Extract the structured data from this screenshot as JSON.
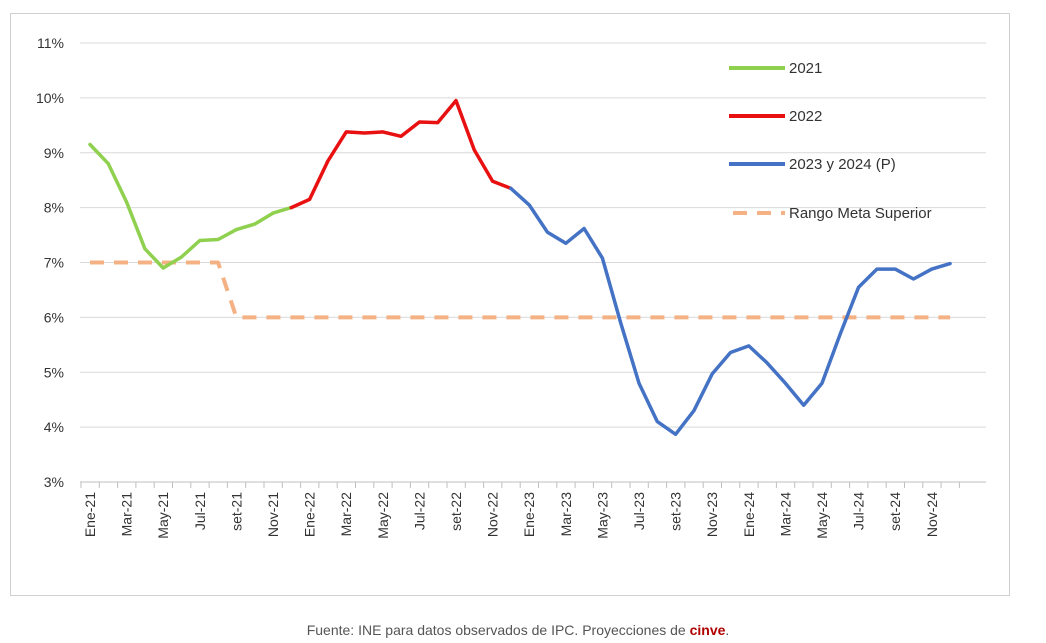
{
  "chart_data": {
    "type": "line",
    "title": "",
    "xlabel": "",
    "ylabel": "",
    "y_axis": {
      "ticks": [
        "3%",
        "4%",
        "5%",
        "6%",
        "7%",
        "8%",
        "9%",
        "10%",
        "11%"
      ],
      "ylim": [
        3,
        11
      ]
    },
    "x_tick_labels": [
      "Ene-21",
      "Mar-21",
      "May-21",
      "Jul-21",
      "set-21",
      "Nov-21",
      "Ene-22",
      "Mar-22",
      "May-22",
      "Jul-22",
      "set-22",
      "Nov-22",
      "Ene-23",
      "Mar-23",
      "May-23",
      "Jul-23",
      "set-23",
      "Nov-23",
      "Ene-24",
      "Mar-24",
      "May-24",
      "Jul-24",
      "set-24",
      "Nov-24"
    ],
    "grid": "horizontal",
    "legend_position": "top-right",
    "series": [
      {
        "name": "2021",
        "color": "#8fd14f",
        "style": "solid",
        "start_month": "Ene-21",
        "values": [
          9.15,
          8.8,
          8.1,
          7.25,
          6.9,
          7.1,
          7.4,
          7.42,
          7.6,
          7.7,
          7.9,
          8.0
        ]
      },
      {
        "name": "2022",
        "color": "#e81010",
        "style": "solid",
        "start_month": "Dic-21",
        "values": [
          8.0,
          8.15,
          8.85,
          9.38,
          9.36,
          9.38,
          9.3,
          9.56,
          9.55,
          9.95,
          9.05,
          8.48,
          8.35
        ]
      },
      {
        "name": "2023 y 2024 (P)",
        "color": "#4472c4",
        "style": "solid",
        "start_month": "Dic-22",
        "values": [
          8.35,
          8.05,
          7.55,
          7.35,
          7.62,
          7.08,
          5.9,
          4.8,
          4.1,
          3.87,
          4.3,
          4.97,
          5.36,
          5.48,
          5.17,
          4.8,
          4.4,
          4.8,
          5.7,
          6.55,
          6.88,
          6.88,
          6.7,
          6.88,
          6.98
        ]
      },
      {
        "name": "Rango Meta Superior",
        "color": "#f4b183",
        "style": "dashed",
        "start_month": "Ene-21",
        "values": [
          7,
          7,
          7,
          7,
          7,
          7,
          7,
          7,
          6,
          6,
          6,
          6,
          6,
          6,
          6,
          6,
          6,
          6,
          6,
          6,
          6,
          6,
          6,
          6,
          6,
          6,
          6,
          6,
          6,
          6,
          6,
          6,
          6,
          6,
          6,
          6,
          6,
          6,
          6,
          6,
          6,
          6,
          6,
          6,
          6,
          6,
          6,
          6
        ]
      }
    ]
  },
  "source": {
    "text": "Fuente: INE para datos observados de IPC. Proyecciones de ",
    "brand": "cinve",
    "end": "."
  }
}
